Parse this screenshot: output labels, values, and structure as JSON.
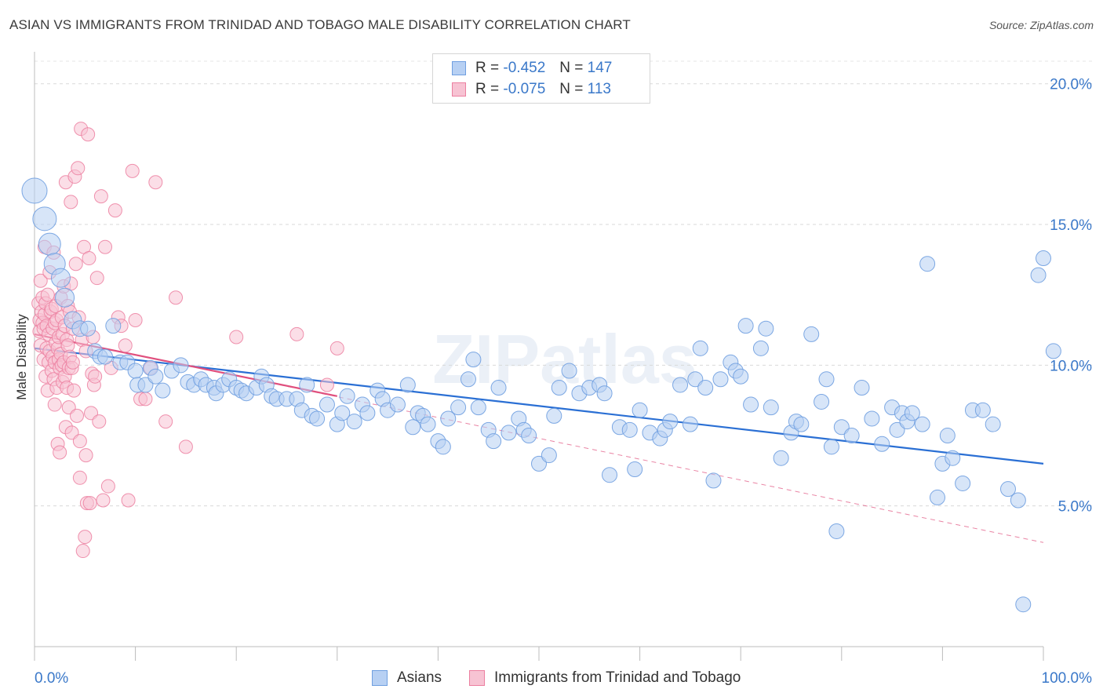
{
  "title": "ASIAN VS IMMIGRANTS FROM TRINIDAD AND TOBAGO MALE DISABILITY CORRELATION CHART",
  "source": "Source: ZipAtlas.com",
  "watermark": "ZIPatlas",
  "colors": {
    "asian": "#6f9fe0",
    "asian_fill": "#b7d0f3",
    "asian_line": "#2a6fd4",
    "trinidad": "#ec7fa0",
    "trinidad_fill": "#f7c3d3",
    "trinidad_line": "#e0507e",
    "value_text": "#3a78c9"
  },
  "legend": {
    "rows": [
      {
        "r_label": "R =",
        "r_value": "-0.452",
        "n_label": "N =",
        "n_value": "147"
      },
      {
        "r_label": "R =",
        "r_value": "-0.075",
        "n_label": "N =",
        "n_value": "113"
      }
    ]
  },
  "bottom_legend": {
    "asian": "Asians",
    "trinidad": "Immigrants from Trinidad and Tobago"
  },
  "chart_data": {
    "type": "scatter",
    "xlabel": "",
    "ylabel": "Male Disability",
    "xlim": [
      0,
      100
    ],
    "ylim": [
      0,
      20.8
    ],
    "x_tick_labels": [
      "0.0%",
      "100.0%"
    ],
    "y_ticks": [
      5,
      10,
      15,
      20
    ],
    "y_tick_labels": [
      "5.0%",
      "10.0%",
      "15.0%",
      "20.0%"
    ],
    "grid": "horizontal dashed",
    "legend_position": "top-center",
    "series": [
      {
        "name": "Asians",
        "r": -0.452,
        "n": 147,
        "trend": {
          "x": [
            0,
            100
          ],
          "y": [
            10.6,
            6.5
          ]
        },
        "points": [
          [
            0,
            16.2
          ],
          [
            1,
            15.2
          ],
          [
            1.5,
            14.3
          ],
          [
            2,
            13.6
          ],
          [
            2.6,
            13.1
          ],
          [
            3,
            12.4
          ],
          [
            3.8,
            11.6
          ],
          [
            4.5,
            11.3
          ],
          [
            5.3,
            11.3
          ],
          [
            6,
            10.5
          ],
          [
            6.5,
            10.3
          ],
          [
            7,
            10.3
          ],
          [
            7.8,
            11.4
          ],
          [
            8.5,
            10.1
          ],
          [
            9.2,
            10.1
          ],
          [
            10,
            9.8
          ],
          [
            10.2,
            9.3
          ],
          [
            11,
            9.3
          ],
          [
            11.5,
            9.9
          ],
          [
            12,
            9.6
          ],
          [
            12.7,
            9.1
          ],
          [
            13.6,
            9.8
          ],
          [
            14.5,
            10
          ],
          [
            15.2,
            9.4
          ],
          [
            15.8,
            9.3
          ],
          [
            16.5,
            9.5
          ],
          [
            17,
            9.3
          ],
          [
            17.8,
            9.2
          ],
          [
            18,
            9
          ],
          [
            18.7,
            9.3
          ],
          [
            19.3,
            9.5
          ],
          [
            20,
            9.2
          ],
          [
            20.5,
            9.1
          ],
          [
            21,
            9
          ],
          [
            22,
            9.2
          ],
          [
            22.5,
            9.6
          ],
          [
            23,
            9.3
          ],
          [
            23.5,
            8.9
          ],
          [
            24,
            8.8
          ],
          [
            25,
            8.8
          ],
          [
            26,
            8.8
          ],
          [
            26.5,
            8.4
          ],
          [
            27,
            9.3
          ],
          [
            27.5,
            8.2
          ],
          [
            28,
            8.1
          ],
          [
            29,
            8.6
          ],
          [
            30,
            7.9
          ],
          [
            30.5,
            8.3
          ],
          [
            31,
            8.9
          ],
          [
            31.7,
            8
          ],
          [
            32.5,
            8.6
          ],
          [
            33,
            8.3
          ],
          [
            34,
            9.1
          ],
          [
            34.5,
            8.8
          ],
          [
            35,
            8.4
          ],
          [
            36,
            8.6
          ],
          [
            37,
            9.3
          ],
          [
            37.5,
            7.8
          ],
          [
            38,
            8.3
          ],
          [
            38.5,
            8.2
          ],
          [
            39,
            7.9
          ],
          [
            40,
            7.3
          ],
          [
            40.5,
            7.1
          ],
          [
            41,
            8.1
          ],
          [
            42,
            8.5
          ],
          [
            43,
            9.5
          ],
          [
            43.5,
            10.2
          ],
          [
            44,
            8.5
          ],
          [
            45,
            7.7
          ],
          [
            45.5,
            7.3
          ],
          [
            46,
            9.2
          ],
          [
            47,
            7.6
          ],
          [
            48,
            8.1
          ],
          [
            48.5,
            7.7
          ],
          [
            49,
            7.5
          ],
          [
            50,
            6.5
          ],
          [
            51,
            6.8
          ],
          [
            51.5,
            8.2
          ],
          [
            52,
            9.2
          ],
          [
            53,
            9.8
          ],
          [
            54,
            9
          ],
          [
            55,
            9.2
          ],
          [
            56,
            9.3
          ],
          [
            56.5,
            9
          ],
          [
            57,
            6.1
          ],
          [
            58,
            7.8
          ],
          [
            59,
            7.7
          ],
          [
            59.5,
            6.3
          ],
          [
            60,
            8.4
          ],
          [
            61,
            7.6
          ],
          [
            62,
            7.4
          ],
          [
            62.5,
            7.7
          ],
          [
            63,
            8
          ],
          [
            64,
            9.3
          ],
          [
            65,
            7.9
          ],
          [
            65.5,
            9.5
          ],
          [
            66,
            10.6
          ],
          [
            66.5,
            9.2
          ],
          [
            67.3,
            5.9
          ],
          [
            68,
            9.5
          ],
          [
            69,
            10.1
          ],
          [
            69.5,
            9.8
          ],
          [
            70,
            9.6
          ],
          [
            70.5,
            11.4
          ],
          [
            71,
            8.6
          ],
          [
            72,
            10.6
          ],
          [
            72.5,
            11.3
          ],
          [
            73,
            8.5
          ],
          [
            74,
            6.7
          ],
          [
            75,
            7.6
          ],
          [
            75.5,
            8
          ],
          [
            76,
            7.9
          ],
          [
            77,
            11.1
          ],
          [
            78,
            8.7
          ],
          [
            78.5,
            9.5
          ],
          [
            79,
            7.1
          ],
          [
            79.5,
            4.1
          ],
          [
            80,
            7.8
          ],
          [
            81,
            7.5
          ],
          [
            82,
            9.2
          ],
          [
            83,
            8.1
          ],
          [
            84,
            7.2
          ],
          [
            85,
            8.5
          ],
          [
            85.5,
            7.7
          ],
          [
            86,
            8.3
          ],
          [
            86.5,
            8
          ],
          [
            87,
            8.3
          ],
          [
            88,
            7.9
          ],
          [
            88.5,
            13.6
          ],
          [
            89.5,
            5.3
          ],
          [
            90,
            6.5
          ],
          [
            90.5,
            7.5
          ],
          [
            91,
            6.7
          ],
          [
            92,
            5.8
          ],
          [
            93,
            8.4
          ],
          [
            94,
            8.4
          ],
          [
            95,
            7.9
          ],
          [
            96.5,
            5.6
          ],
          [
            97.5,
            5.2
          ],
          [
            98,
            1.5
          ],
          [
            99.5,
            13.2
          ],
          [
            100,
            13.8
          ],
          [
            101,
            10.5
          ]
        ]
      },
      {
        "name": "Immigrants from Trinidad and Tobago",
        "r": -0.075,
        "n": 113,
        "trend": {
          "x": [
            0,
            30
          ],
          "y": [
            11.1,
            8.9
          ]
        },
        "trend_extended": {
          "x": [
            0,
            100
          ],
          "y": [
            11.1,
            3.7
          ]
        },
        "points": [
          [
            0.4,
            12.2
          ],
          [
            0.5,
            11.6
          ],
          [
            0.5,
            11.2
          ],
          [
            0.6,
            10.7
          ],
          [
            0.6,
            13
          ],
          [
            0.7,
            11.9
          ],
          [
            0.8,
            12.4
          ],
          [
            0.8,
            11.5
          ],
          [
            0.9,
            10.2
          ],
          [
            0.9,
            11.3
          ],
          [
            1,
            14.2
          ],
          [
            1,
            11.8
          ],
          [
            1.1,
            9.6
          ],
          [
            1.1,
            12.2
          ],
          [
            1.2,
            11.4
          ],
          [
            1.2,
            10.6
          ],
          [
            1.3,
            9.1
          ],
          [
            1.3,
            12.5
          ],
          [
            1.4,
            10.1
          ],
          [
            1.4,
            11.1
          ],
          [
            1.5,
            13.3
          ],
          [
            1.5,
            10.5
          ],
          [
            1.6,
            11.9
          ],
          [
            1.7,
            9.8
          ],
          [
            1.7,
            12
          ],
          [
            1.8,
            10.3
          ],
          [
            1.8,
            11.3
          ],
          [
            1.9,
            14
          ],
          [
            1.9,
            9.5
          ],
          [
            2,
            11.5
          ],
          [
            2,
            10.1
          ],
          [
            2.1,
            10.8
          ],
          [
            2.1,
            12.1
          ],
          [
            2.2,
            9.2
          ],
          [
            2.2,
            11.6
          ],
          [
            2.3,
            10.6
          ],
          [
            2.3,
            7.2
          ],
          [
            2.4,
            11
          ],
          [
            2.4,
            10.2
          ],
          [
            2.5,
            6.9
          ],
          [
            2.5,
            9.9
          ],
          [
            2.6,
            12.4
          ],
          [
            2.6,
            10.4
          ],
          [
            2.7,
            11.7
          ],
          [
            2.7,
            10
          ],
          [
            2.8,
            9.4
          ],
          [
            2.8,
            11.1
          ],
          [
            2.9,
            12.8
          ],
          [
            2.9,
            10.1
          ],
          [
            3,
            9.6
          ],
          [
            3,
            11.4
          ],
          [
            3.1,
            16.5
          ],
          [
            3.1,
            7.8
          ],
          [
            3.2,
            10.9
          ],
          [
            3.2,
            9.2
          ],
          [
            3.3,
            12.1
          ],
          [
            3.3,
            10.7
          ],
          [
            3.4,
            9.9
          ],
          [
            3.4,
            8.5
          ],
          [
            3.5,
            10.3
          ],
          [
            3.5,
            11.9
          ],
          [
            3.6,
            15.8
          ],
          [
            3.6,
            12.9
          ],
          [
            3.7,
            9.9
          ],
          [
            3.7,
            7.6
          ],
          [
            3.8,
            11.3
          ],
          [
            3.8,
            10.1
          ],
          [
            3.9,
            9.1
          ],
          [
            4,
            16.7
          ],
          [
            4.1,
            13.6
          ],
          [
            4.2,
            8.2
          ],
          [
            4.3,
            17
          ],
          [
            4.4,
            11.7
          ],
          [
            4.5,
            7.3
          ],
          [
            4.5,
            6
          ],
          [
            4.6,
            18.4
          ],
          [
            4.7,
            10.9
          ],
          [
            4.8,
            3.4
          ],
          [
            4.9,
            14.2
          ],
          [
            5,
            3.9
          ],
          [
            5.1,
            10.5
          ],
          [
            5.1,
            6.8
          ],
          [
            5.2,
            5.1
          ],
          [
            5.3,
            18.2
          ],
          [
            5.4,
            13.8
          ],
          [
            5.5,
            5.1
          ],
          [
            5.6,
            8.3
          ],
          [
            5.7,
            9.7
          ],
          [
            5.8,
            11
          ],
          [
            5.9,
            9.3
          ],
          [
            6,
            9.6
          ],
          [
            6.2,
            13.1
          ],
          [
            6.4,
            8
          ],
          [
            6.6,
            16
          ],
          [
            6.8,
            5.2
          ],
          [
            7,
            14.2
          ],
          [
            7.3,
            5.7
          ],
          [
            7.6,
            9.9
          ],
          [
            8,
            15.5
          ],
          [
            8.3,
            11.7
          ],
          [
            8.6,
            11.4
          ],
          [
            9,
            10.7
          ],
          [
            9.3,
            5.2
          ],
          [
            9.7,
            16.9
          ],
          [
            10,
            11.6
          ],
          [
            10.5,
            8.8
          ],
          [
            11,
            8.8
          ],
          [
            11.5,
            9.9
          ],
          [
            12,
            16.5
          ],
          [
            13,
            8
          ],
          [
            14,
            12.4
          ],
          [
            15,
            7.1
          ],
          [
            20,
            11
          ],
          [
            26,
            11.1
          ],
          [
            29,
            9.3
          ],
          [
            30,
            10.6
          ],
          [
            2,
            8.6
          ]
        ]
      }
    ]
  }
}
